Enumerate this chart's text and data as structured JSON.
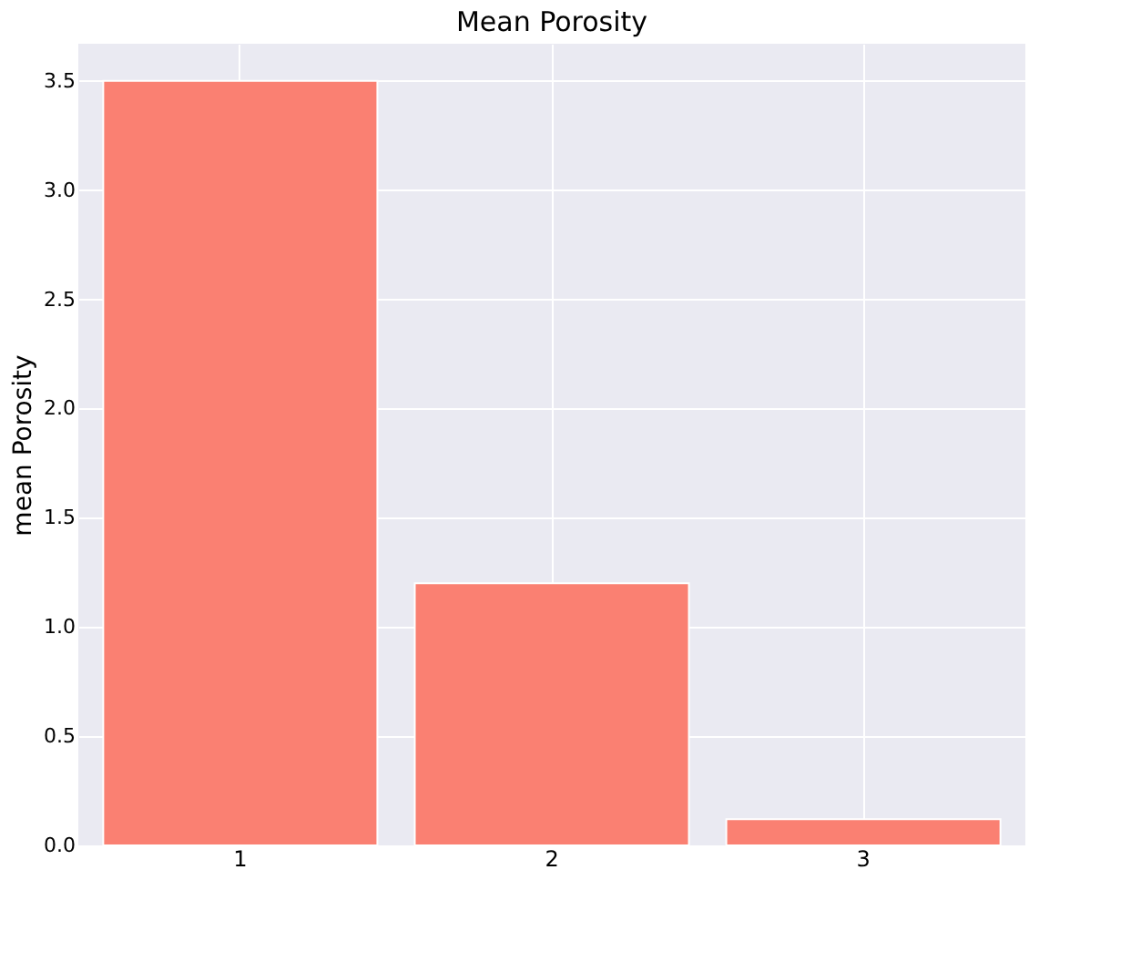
{
  "chart_data": {
    "type": "bar",
    "title": "Mean Porosity",
    "ylabel": "mean Porosity",
    "categories": [
      "1",
      "2",
      "3"
    ],
    "values": [
      3.5,
      1.2,
      0.12
    ],
    "color": "#fa8072",
    "ylim": [
      0,
      3.67
    ],
    "yticks": [
      {
        "value": 0,
        "label": "0.0"
      },
      0.5,
      {
        "value": 1,
        "label": "1.0"
      },
      1.5,
      {
        "value": 2,
        "label": "2.0"
      },
      2.5,
      {
        "value": 3,
        "label": "3.0"
      },
      3.5
    ],
    "grid": true
  }
}
